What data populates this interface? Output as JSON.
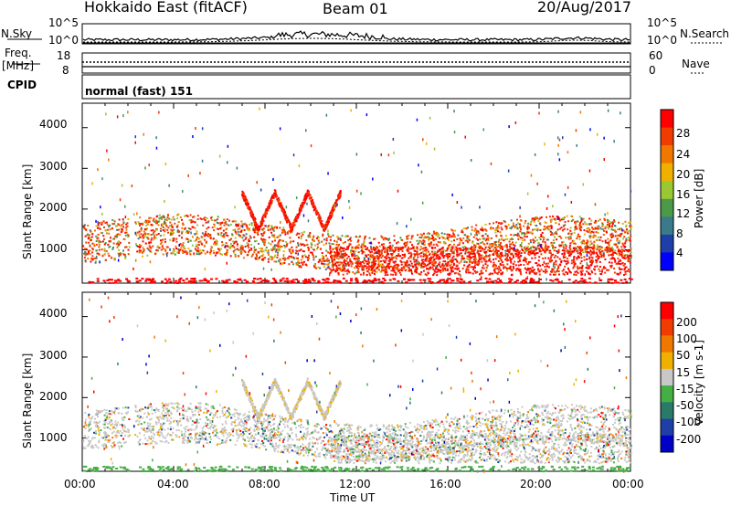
{
  "header": {
    "station": "Hokkaido East (fitACF)",
    "beam": "Beam 01",
    "date": "20/Aug/2017"
  },
  "side_labels": {
    "nsky": "N.Sky",
    "nsearch": "N.Search",
    "freq": "Freq.",
    "mhz": "[MHz]",
    "nave": "Nave",
    "cpid": "CPID"
  },
  "chart_data": [
    {
      "type": "line",
      "name": "noise-panel",
      "left_ticks": [
        "10^5",
        "10^0"
      ],
      "right_ticks": [
        "10^5",
        "10^0"
      ],
      "left_label": "N.Sky",
      "right_label": "N.Search"
    },
    {
      "type": "line",
      "name": "freq-nave-panel",
      "left_ticks": [
        "18",
        "8"
      ],
      "right_ticks": [
        "60",
        "0"
      ],
      "left_label": "Freq. [MHz]",
      "right_label": "Nave"
    },
    {
      "type": "table",
      "name": "cpid-panel",
      "label": "CPID",
      "mode": "normal (fast) 151"
    },
    {
      "type": "heatmap",
      "name": "power-panel",
      "ylabel": "Slant Range [km]",
      "yticks": [
        "4000",
        "3000",
        "2000",
        "1000"
      ],
      "ylim": [
        180,
        4600
      ],
      "colorbar_label": "Power [dB]",
      "colorbar_ticks": [
        "28",
        "24",
        "20",
        "16",
        "12",
        "8",
        "4"
      ],
      "colors": [
        "#0000ff",
        "#1f3fa8",
        "#3a7a8a",
        "#4a9a4a",
        "#9ac832",
        "#f0b000",
        "#f07800",
        "#f03c00",
        "#ff0000"
      ]
    },
    {
      "type": "heatmap",
      "name": "velocity-panel",
      "ylabel": "Slant Range [km]",
      "yticks": [
        "4000",
        "3000",
        "2000",
        "1000"
      ],
      "ylim": [
        180,
        4600
      ],
      "colorbar_label": "Velocity [m s-1]",
      "colorbar_ticks": [
        "200",
        "100",
        "50",
        "15",
        "-15",
        "-50",
        "-100",
        "-200"
      ],
      "colors": [
        "#0000c8",
        "#1f3fa8",
        "#2a7a6a",
        "#44b044",
        "#c8c8c8",
        "#f0b000",
        "#f07800",
        "#f03c00",
        "#ff0000"
      ]
    }
  ],
  "time_axis": {
    "ticks": [
      "00:00",
      "04:00",
      "08:00",
      "12:00",
      "16:00",
      "20:00",
      "00:00"
    ],
    "label": "Time UT"
  }
}
